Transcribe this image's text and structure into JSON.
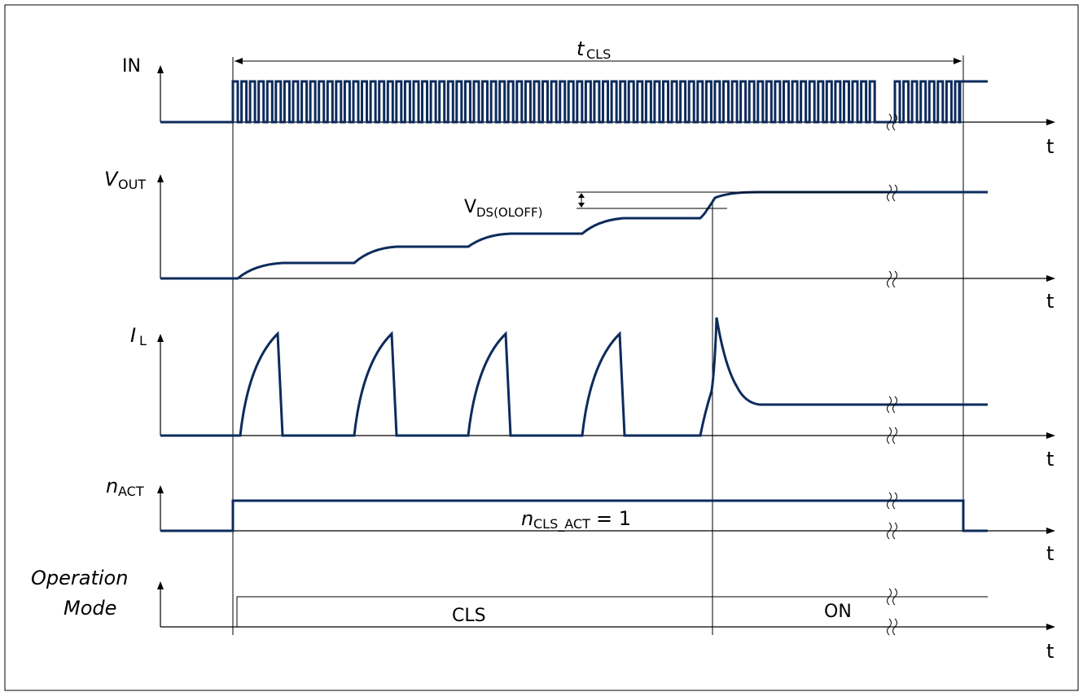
{
  "colors": {
    "signal": "#0d2b5c",
    "axis": "#000000",
    "frame": "#000000",
    "background": "#ffffff"
  },
  "top_label": {
    "main": "t",
    "sub": "CLS"
  },
  "rows": {
    "in": {
      "label": "IN",
      "time_label": "t"
    },
    "vout": {
      "label_main": "V",
      "label_sub": "OUT",
      "time_label": "t"
    },
    "il": {
      "label_main": "I",
      "label_sub": "L",
      "time_label": "t"
    },
    "nact": {
      "label_main": "n",
      "label_sub": "ACT",
      "time_label": "t"
    },
    "opmode": {
      "label_line1": "Operation",
      "label_line2": "Mode",
      "time_label": "t"
    }
  },
  "annotations": {
    "vds": {
      "main": "V",
      "sub": "DS(OLOFF)"
    },
    "ncls": {
      "main": "n",
      "sub": "CLS_ACT",
      "suffix": " = 1"
    }
  },
  "modes": {
    "cls": "CLS",
    "on": "ON"
  },
  "icons": {
    "axis_arrow": "arrow-icon",
    "break": "axis-break-icon"
  }
}
